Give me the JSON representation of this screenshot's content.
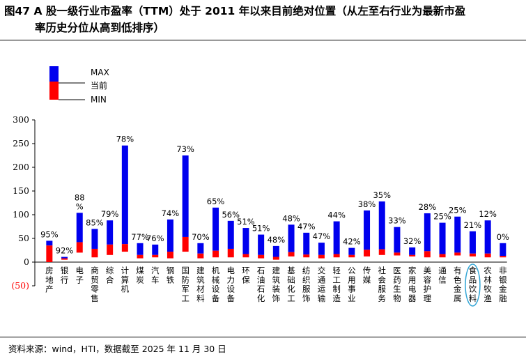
{
  "title": {
    "line1": "图47 A 股一级行业市盈率（TTM）处于 2011 年以来目前绝对位置（从左至右行业为最新市盈",
    "line2": "率历史分位从高到低排序）"
  },
  "source": "资料来源：wind，HTI，数据截至 2025 年 11 月 30 日",
  "colors": {
    "max": "#0000ee",
    "min": "#ff0000",
    "current": "#ff0000",
    "highlight": "#33a6d6"
  },
  "chart_data": {
    "type": "bar",
    "ylim": [
      -50,
      300
    ],
    "yticks": [
      "(50)",
      "0",
      "50",
      "100",
      "150",
      "200",
      "250",
      "300"
    ],
    "ytick_values": [
      -50,
      0,
      50,
      100,
      150,
      200,
      250,
      300
    ],
    "legend": {
      "labels": [
        "MAX",
        "当前",
        "MIN"
      ],
      "position": "top-left"
    },
    "highlighted_category": "食品饮料",
    "categories": [
      "房地产",
      "银行",
      "电子",
      "商贸零售",
      "综合",
      "计算机",
      "煤炭",
      "汽车",
      "钢铁",
      "国防军工",
      "建筑材料",
      "机械设备",
      "电力设备",
      "环保",
      "石油石化",
      "建筑装饰",
      "基础化工",
      "纺织服饰",
      "交通运输",
      "轻工制造",
      "公用事业",
      "传媒",
      "社会服务",
      "医药生物",
      "家用电器",
      "美容护理",
      "通信",
      "有色金属",
      "食品饮料",
      "农林牧渔",
      "非银金融"
    ],
    "percentile_labels": [
      "95%",
      "92%",
      "88 %",
      "85%",
      "79%",
      "78%",
      "77%",
      "76%",
      "74%",
      "73%",
      "70%",
      "65%",
      "56%",
      "51%",
      "51%",
      "48%",
      "48%",
      "47%",
      "47%",
      "44%",
      "42%",
      "38%",
      "35%",
      "33%",
      "32%",
      "28%",
      "25%",
      "25%",
      "21%",
      "12%",
      "0%"
    ],
    "series": [
      {
        "name": "MAX",
        "values": [
          45,
          11,
          104,
          70,
          88,
          246,
          40,
          37,
          90,
          225,
          40,
          115,
          87,
          72,
          58,
          34,
          79,
          62,
          41,
          86,
          30,
          109,
          128,
          74,
          31,
          103,
          83,
          96,
          65,
          88,
          40
        ]
      },
      {
        "name": "当前",
        "values": [
          35,
          8,
          42,
          28,
          37,
          38,
          15,
          15,
          22,
          53,
          18,
          24,
          28,
          17,
          15,
          11,
          21,
          16,
          15,
          17,
          15,
          26,
          27,
          20,
          15,
          23,
          17,
          20,
          18,
          18,
          13
        ]
      },
      {
        "name": "MIN",
        "values": [
          0,
          5,
          20,
          10,
          15,
          22,
          8,
          10,
          8,
          22,
          8,
          10,
          10,
          10,
          8,
          5,
          12,
          10,
          8,
          10,
          10,
          12,
          15,
          14,
          12,
          10,
          10,
          14,
          12,
          10,
          10
        ]
      }
    ]
  }
}
